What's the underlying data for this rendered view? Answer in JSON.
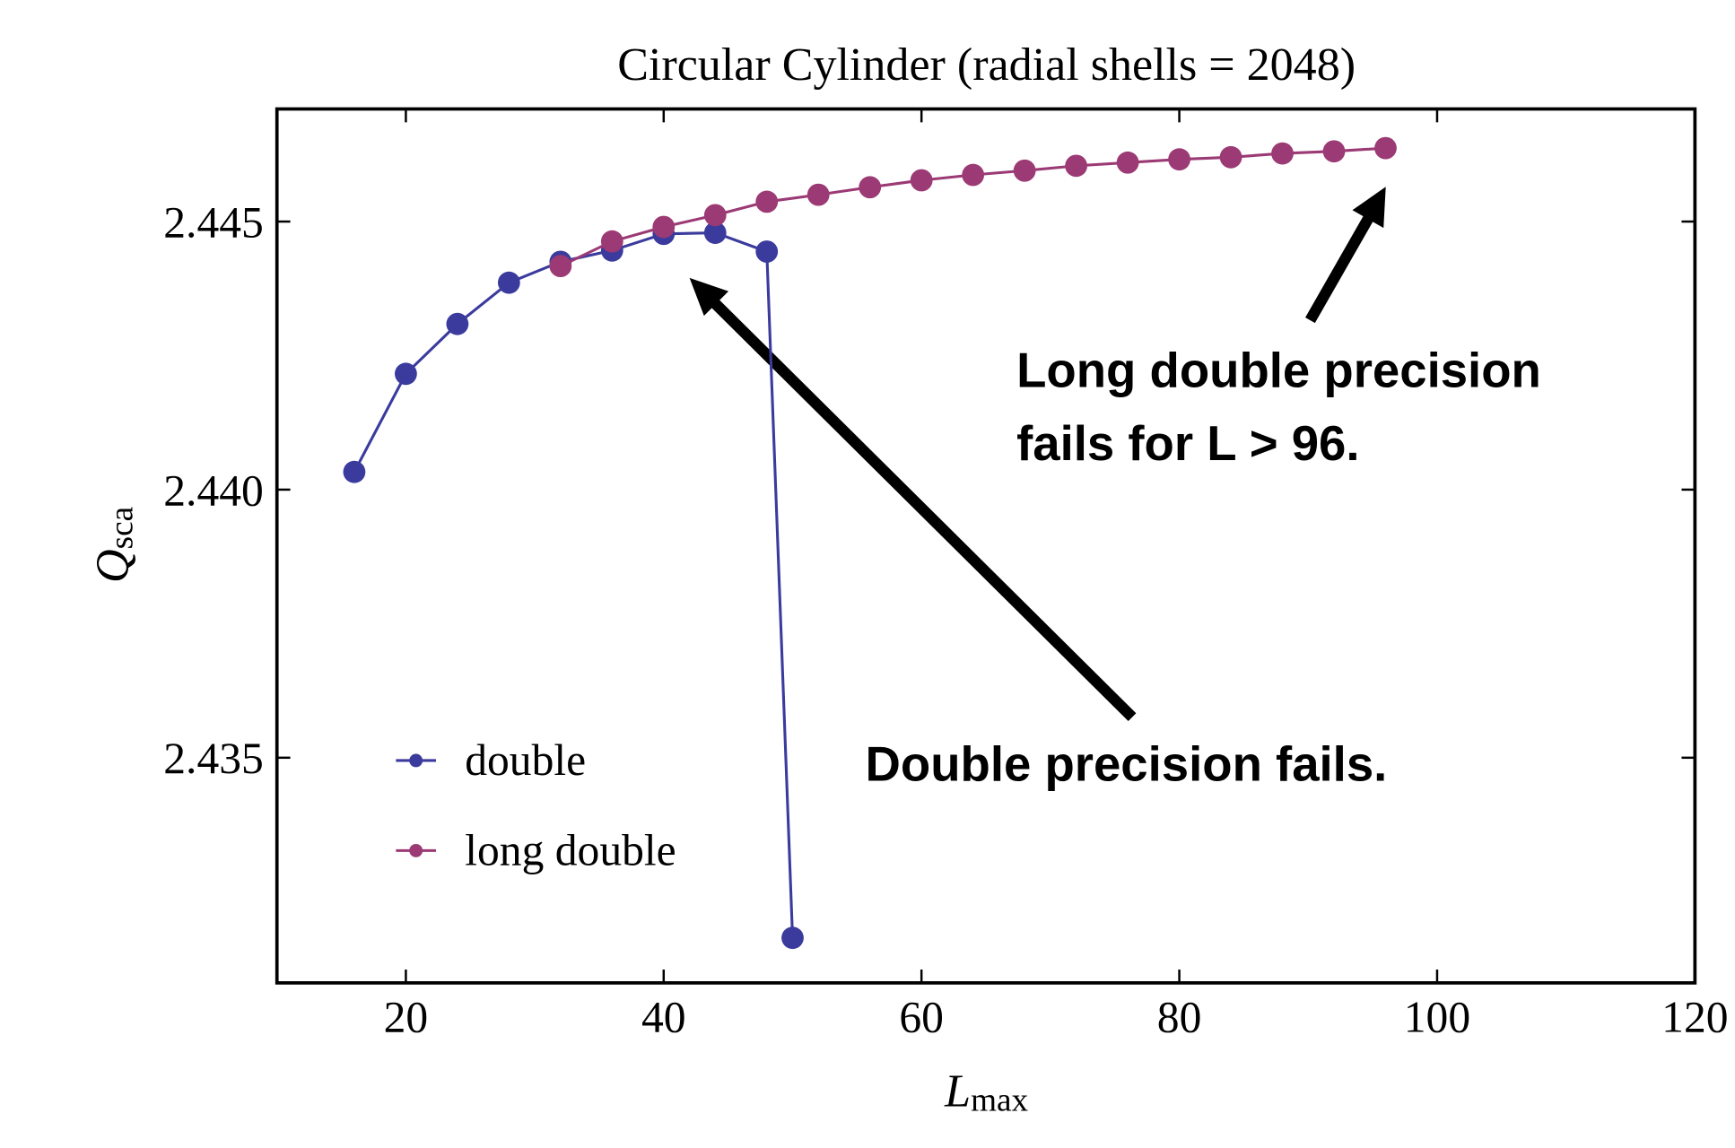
{
  "chart_data": {
    "type": "line",
    "title": "Circular Cylinder (radial shells = 2048)",
    "x_label": "L",
    "x_label_sub": "max",
    "y_label": "Q",
    "y_label_sub": "sca",
    "xlim": [
      10,
      120
    ],
    "xticks": [
      20,
      40,
      60,
      80,
      100,
      120
    ],
    "ylim": [
      2.4308,
      2.4471
    ],
    "yticks": [
      {
        "value": 2.435,
        "label": "2.435"
      },
      {
        "value": 2.44,
        "label": "2.440"
      },
      {
        "value": 2.445,
        "label": "2.445"
      }
    ],
    "legend": "lower left",
    "series": [
      {
        "name": "double",
        "color": "#3b3b9e",
        "x": [
          16,
          20,
          24,
          28,
          32,
          36,
          40,
          44,
          48,
          50
        ],
        "values": [
          2.44033,
          2.44216,
          2.44309,
          2.44386,
          2.44425,
          2.44446,
          2.44477,
          2.44479,
          2.44444,
          2.43164
        ]
      },
      {
        "name": "long double",
        "color": "#9b3a74",
        "x": [
          32,
          36,
          40,
          44,
          48,
          52,
          56,
          60,
          64,
          68,
          72,
          76,
          80,
          84,
          88,
          92,
          96
        ],
        "values": [
          2.44417,
          2.44463,
          2.4449,
          2.44512,
          2.44537,
          2.4455,
          2.44564,
          2.44577,
          2.44587,
          2.44595,
          2.44604,
          2.4461,
          2.44616,
          2.4462,
          2.44627,
          2.44631,
          2.44637
        ]
      }
    ],
    "annotations": [
      {
        "lines": [
          "Long double precision",
          "fails for L > 96."
        ]
      },
      {
        "lines": [
          "Double precision fails."
        ]
      }
    ]
  }
}
